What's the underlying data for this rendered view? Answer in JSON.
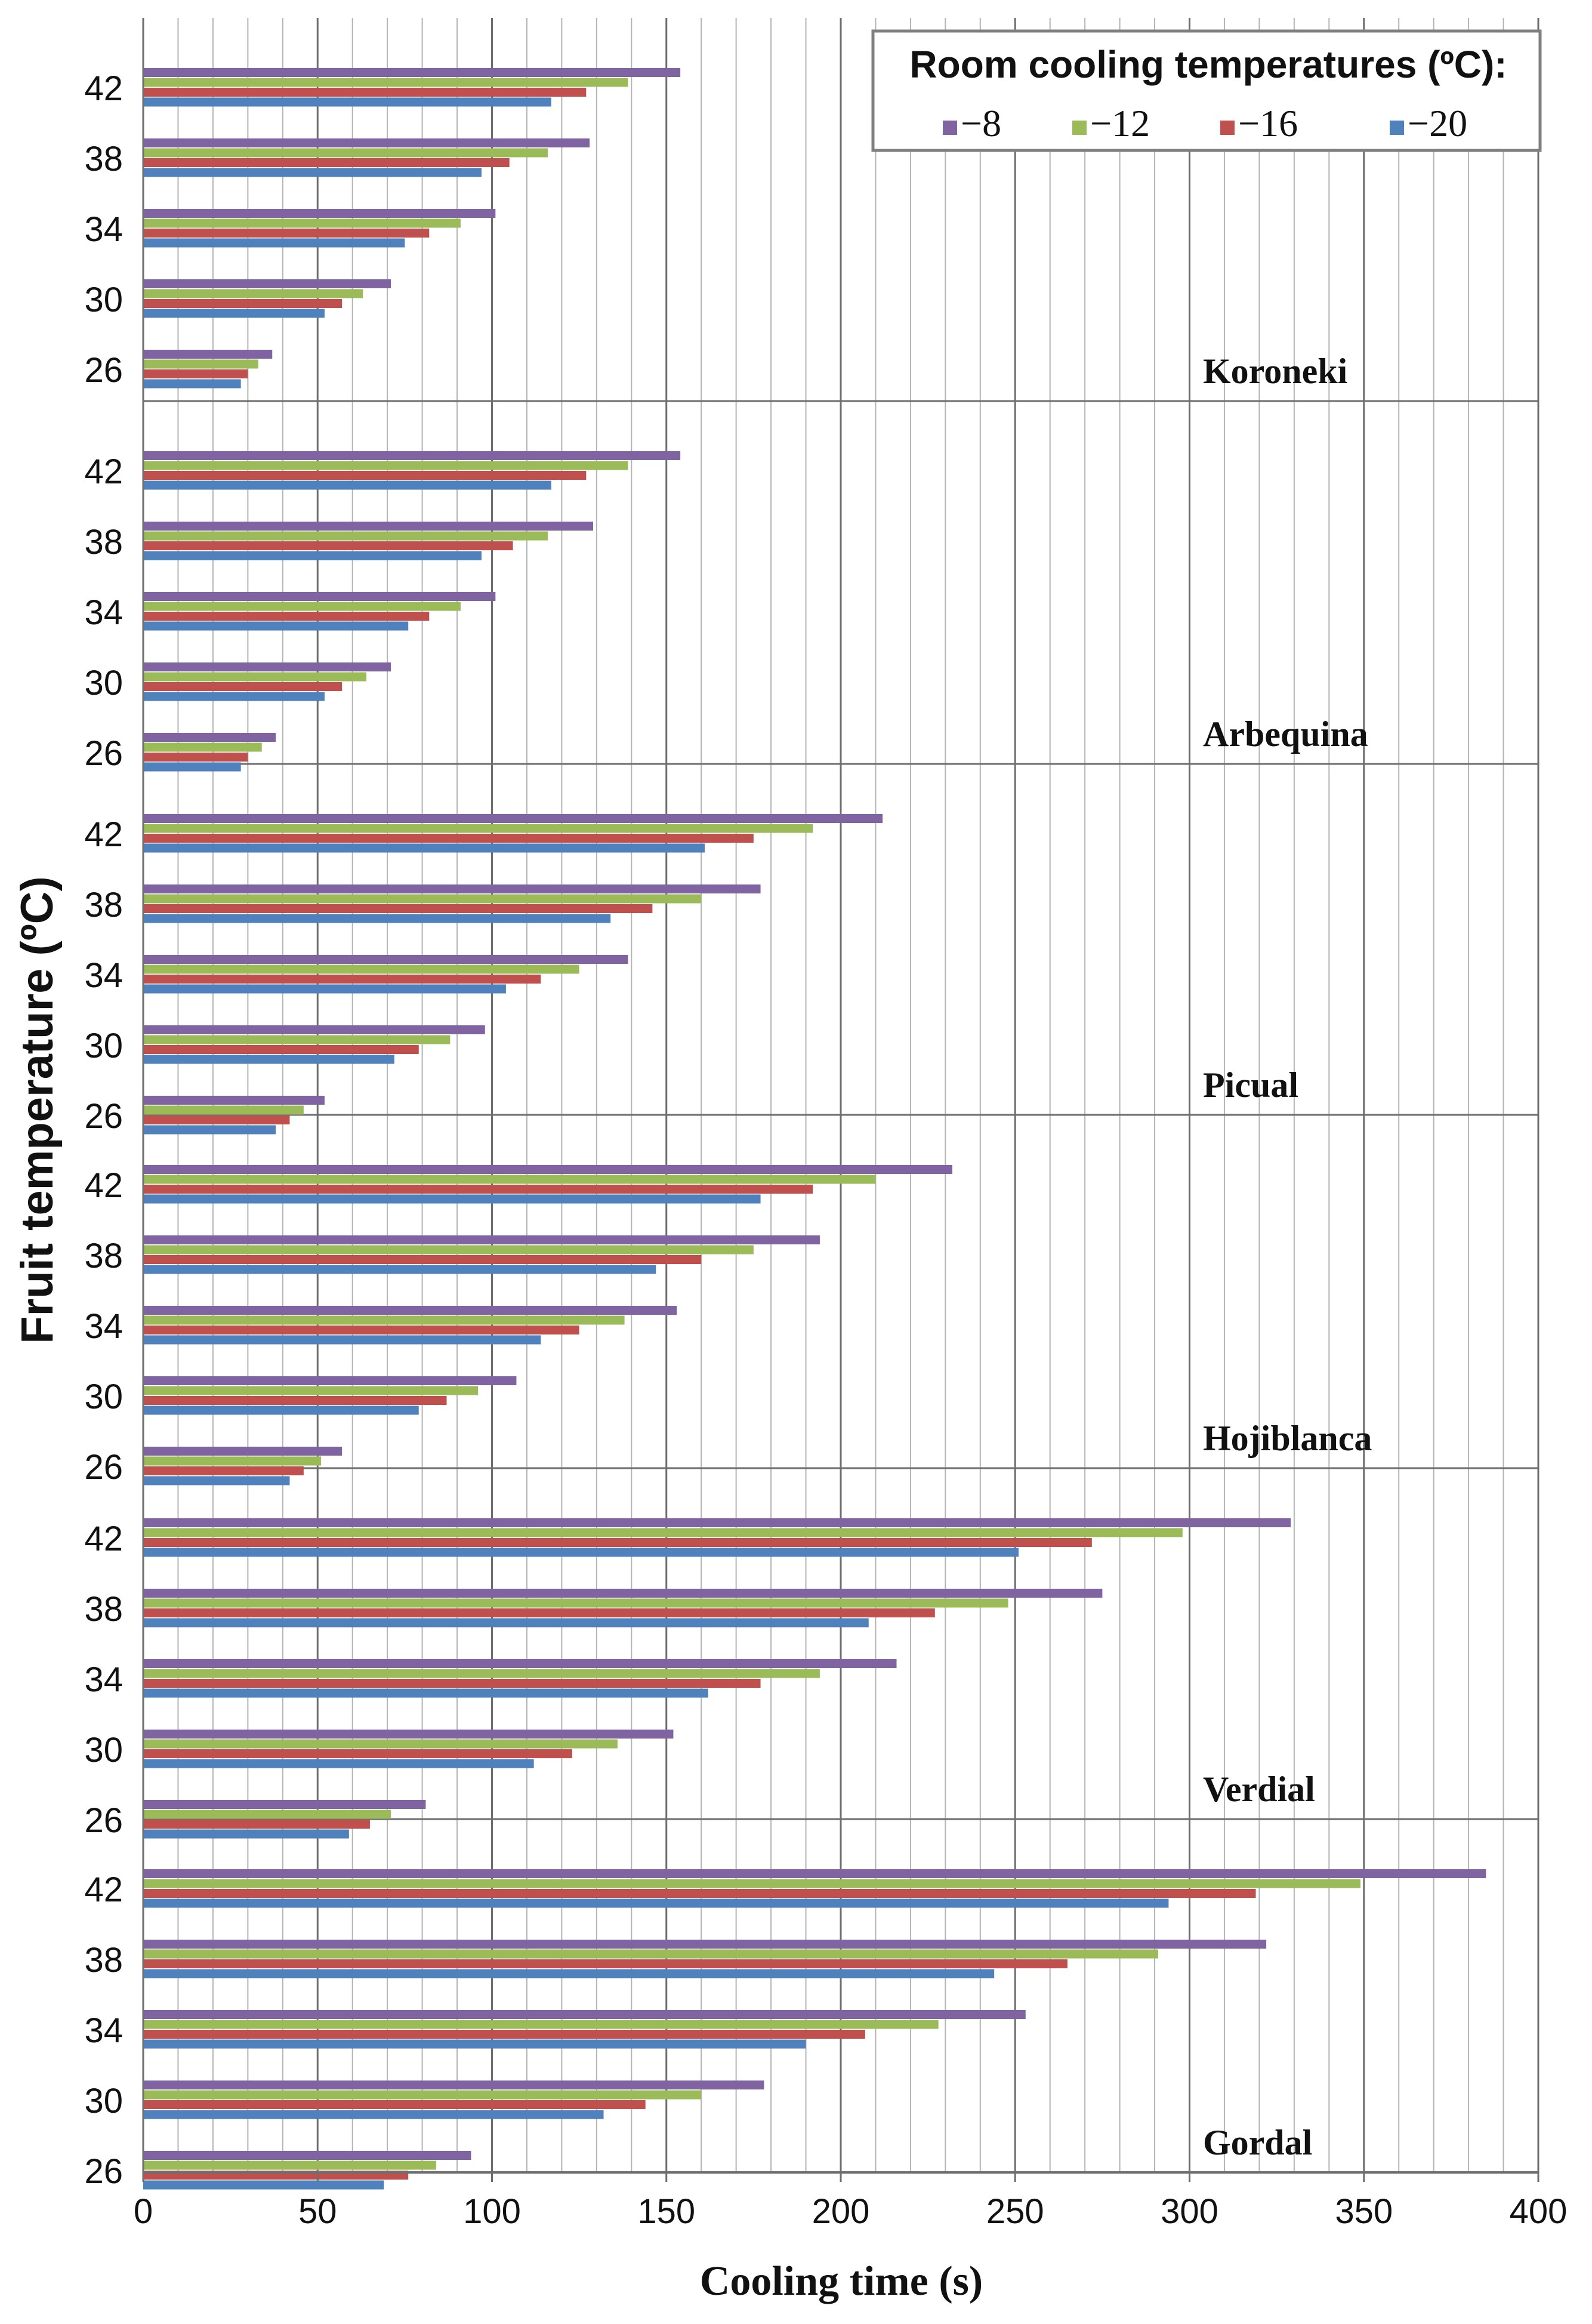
{
  "chart_data": {
    "type": "bar",
    "orientation": "horizontal",
    "xlabel": "Cooling time (s)",
    "ylabel": "Fruit temperature (ºC)",
    "xlim": [
      0,
      400
    ],
    "x_ticks": [
      "0",
      "50",
      "100",
      "150",
      "200",
      "250",
      "300",
      "350",
      "400"
    ],
    "categories": [
      "42",
      "38",
      "34",
      "30",
      "26"
    ],
    "legend": {
      "title": "Room cooling temperatures (ºC):",
      "position": "top-right",
      "entries": [
        "−8",
        "−12",
        "−16",
        "−20"
      ]
    },
    "series_colors": [
      "#8064a2",
      "#9bbb59",
      "#c0504d",
      "#4f81bd"
    ],
    "grid": true,
    "panels": [
      {
        "name": "Koroneki",
        "series": [
          {
            "name": "−8",
            "values": [
              154,
              128,
              101,
              71,
              37
            ]
          },
          {
            "name": "−12",
            "values": [
              139,
              116,
              91,
              63,
              33
            ]
          },
          {
            "name": "−16",
            "values": [
              127,
              105,
              82,
              57,
              30
            ]
          },
          {
            "name": "−20",
            "values": [
              117,
              97,
              75,
              52,
              28
            ]
          }
        ]
      },
      {
        "name": "Arbequina",
        "series": [
          {
            "name": "−8",
            "values": [
              154,
              129,
              101,
              71,
              38
            ]
          },
          {
            "name": "−12",
            "values": [
              139,
              116,
              91,
              64,
              34
            ]
          },
          {
            "name": "−16",
            "values": [
              127,
              106,
              82,
              57,
              30
            ]
          },
          {
            "name": "−20",
            "values": [
              117,
              97,
              76,
              52,
              28
            ]
          }
        ]
      },
      {
        "name": "Picual",
        "series": [
          {
            "name": "−8",
            "values": [
              212,
              177,
              139,
              98,
              52
            ]
          },
          {
            "name": "−12",
            "values": [
              192,
              160,
              125,
              88,
              46
            ]
          },
          {
            "name": "−16",
            "values": [
              175,
              146,
              114,
              79,
              42
            ]
          },
          {
            "name": "−20",
            "values": [
              161,
              134,
              104,
              72,
              38
            ]
          }
        ]
      },
      {
        "name": "Hojiblanca",
        "series": [
          {
            "name": "−8",
            "values": [
              232,
              194,
              153,
              107,
              57
            ]
          },
          {
            "name": "−12",
            "values": [
              210,
              175,
              138,
              96,
              51
            ]
          },
          {
            "name": "−16",
            "values": [
              192,
              160,
              125,
              87,
              46
            ]
          },
          {
            "name": "−20",
            "values": [
              177,
              147,
              114,
              79,
              42
            ]
          }
        ]
      },
      {
        "name": "Verdial",
        "series": [
          {
            "name": "−8",
            "values": [
              329,
              275,
              216,
              152,
              81
            ]
          },
          {
            "name": "−12",
            "values": [
              298,
              248,
              194,
              136,
              71
            ]
          },
          {
            "name": "−16",
            "values": [
              272,
              227,
              177,
              123,
              65
            ]
          },
          {
            "name": "−20",
            "values": [
              251,
              208,
              162,
              112,
              59
            ]
          }
        ]
      },
      {
        "name": "Gordal",
        "series": [
          {
            "name": "−8",
            "values": [
              385,
              322,
              253,
              178,
              94
            ]
          },
          {
            "name": "−12",
            "values": [
              349,
              291,
              228,
              160,
              84
            ]
          },
          {
            "name": "−16",
            "values": [
              319,
              265,
              207,
              144,
              76
            ]
          },
          {
            "name": "−20",
            "values": [
              294,
              244,
              190,
              132,
              69
            ]
          }
        ]
      }
    ]
  }
}
